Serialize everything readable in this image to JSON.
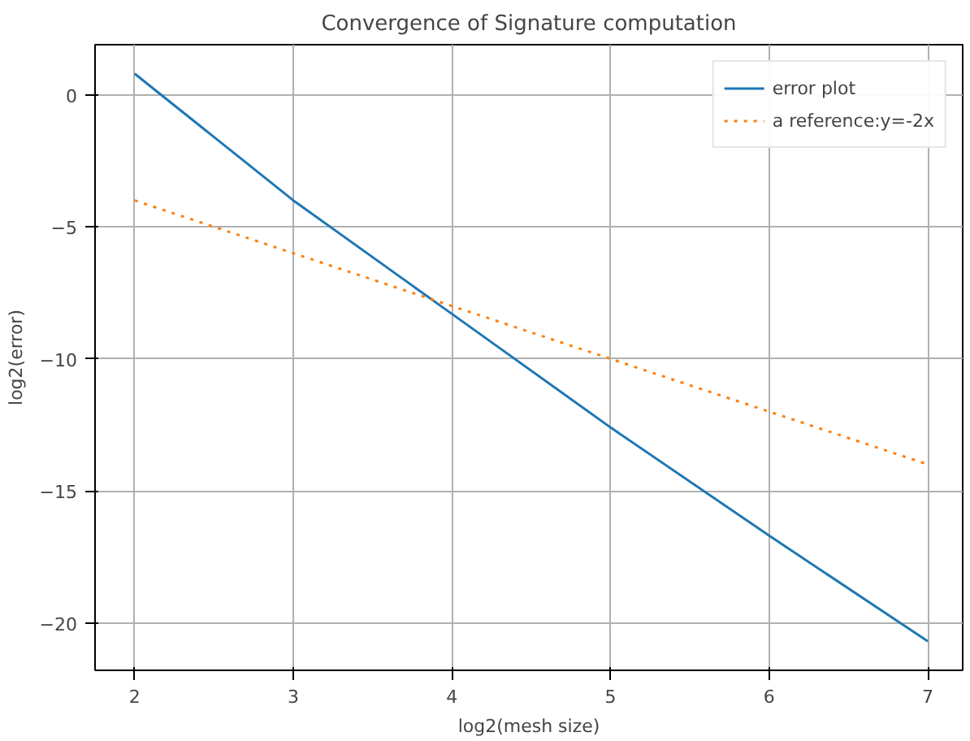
{
  "chart_data": {
    "type": "line",
    "title": "Convergence of Signature computation",
    "xlabel": "log2(mesh size)",
    "ylabel": "log2(error)",
    "x": [
      2,
      3,
      4,
      5,
      6,
      7
    ],
    "series": [
      {
        "name": "error plot",
        "color": "#1f77b4",
        "line_style": "solid",
        "values": [
          0.8,
          -4.0,
          -8.3,
          -12.6,
          -16.7,
          -20.7
        ]
      },
      {
        "name": "a reference:y=-2x",
        "color": "#ff7f0e",
        "line_style": "dotted",
        "values": [
          -4,
          -6,
          -8,
          -10,
          -12,
          -14
        ]
      }
    ],
    "xlim": [
      1.75,
      7.22
    ],
    "ylim": [
      -21.8,
      1.9
    ],
    "xticks": [
      2,
      3,
      4,
      5,
      6,
      7
    ],
    "yticks": [
      {
        "value": 0,
        "label": "0"
      },
      {
        "value": -5,
        "label": "−5"
      },
      {
        "value": -10,
        "label": "−10"
      },
      {
        "value": -15,
        "label": "−15"
      },
      {
        "value": -20,
        "label": "−20"
      }
    ],
    "grid": true,
    "legend": "top right"
  }
}
